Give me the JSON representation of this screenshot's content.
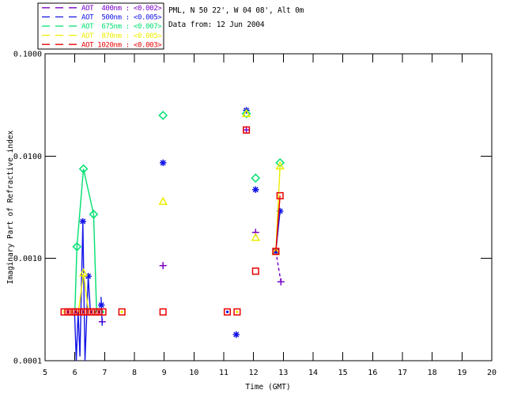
{
  "page": {
    "background": "#ffffff"
  },
  "header": {
    "line1": "PML, N 50 22', W 04 08', Alt 0m",
    "line2": "Data from: 12 Jun 2004"
  },
  "chart_data": {
    "type": "scatter",
    "title": "",
    "xlabel": "Time (GMT)",
    "ylabel": "Imaginary Part of Refractive index",
    "xlim": [
      5,
      20
    ],
    "ylim": [
      0.0001,
      0.1
    ],
    "y_scale": "log",
    "grid": false,
    "x_ticks": [
      5,
      6,
      7,
      8,
      9,
      10,
      11,
      12,
      13,
      14,
      15,
      16,
      17,
      18,
      19,
      20
    ],
    "y_ticks": [
      {
        "value": 0.1,
        "label": "0.1000"
      },
      {
        "value": 0.01,
        "label": "0.0100"
      },
      {
        "value": 0.001,
        "label": "0.0010"
      },
      {
        "value": 0.0001,
        "label": "0.0001"
      }
    ],
    "legend": {
      "position": "top-left",
      "items": [
        {
          "id": "400nm",
          "label": "AOT  400nm : <0.002>",
          "color": "#7800C8"
        },
        {
          "id": "500nm",
          "label": "AOT  500nm : <0.005>",
          "color": "#1414E8"
        },
        {
          "id": "675nm",
          "label": "AOT  675nm : <0.007>",
          "color": "#00E070"
        },
        {
          "id": "870nm",
          "label": "AOT  870nm : <0.005>",
          "color": "#EDED00"
        },
        {
          "id": "1020nm",
          "label": "AOT 1020nm : <0.003>",
          "color": "#E80000"
        }
      ]
    },
    "series": [
      {
        "name": "AOT 400nm",
        "color": "#7800C8",
        "marker": "plus",
        "dash": "4,3",
        "points": [
          [
            6.92,
            0.00024
          ],
          [
            8.96,
            0.00085
          ],
          [
            11.76,
            0.018
          ],
          [
            12.07,
            0.0018
          ],
          [
            12.75,
            0.00117
          ],
          [
            12.92,
            0.00059
          ]
        ],
        "lines": [
          [
            [
              12.75,
              0.00117
            ],
            [
              12.92,
              0.00059
            ]
          ]
        ]
      },
      {
        "name": "AOT 500nm",
        "color": "#1414E8",
        "marker": "asterisk",
        "dash": "",
        "points": [
          [
            6.27,
            0.0023
          ],
          [
            6.45,
            0.00067
          ],
          [
            6.89,
            0.00035
          ],
          [
            8.96,
            0.0086
          ],
          [
            11.42,
            0.00018
          ],
          [
            11.76,
            0.028
          ],
          [
            12.07,
            0.0047
          ],
          [
            12.75,
            0.00117
          ],
          [
            12.89,
            0.0029
          ]
        ],
        "lines": [
          [
            [
              5.99,
              0.0003
            ],
            [
              6.05,
              0.0001
            ],
            [
              6.11,
              0.0003
            ],
            [
              6.17,
              0.00011
            ],
            [
              6.27,
              0.0023
            ],
            [
              6.34,
              0.0001
            ],
            [
              6.45,
              0.00067
            ],
            [
              6.52,
              0.0003
            ]
          ],
          [
            [
              6.88,
              0.00042
            ],
            [
              6.92,
              0.00022
            ]
          ],
          [
            [
              12.75,
              0.00117
            ],
            [
              12.89,
              0.0029
            ]
          ]
        ]
      },
      {
        "name": "AOT 675nm",
        "color": "#00E070",
        "marker": "diamond",
        "dash": "",
        "points": [
          [
            6.07,
            0.0013
          ],
          [
            6.29,
            0.0075
          ],
          [
            6.63,
            0.0027
          ],
          [
            8.96,
            0.025
          ],
          [
            11.76,
            0.026
          ],
          [
            12.07,
            0.0061
          ],
          [
            12.89,
            0.0086
          ]
        ],
        "lines": [
          [
            [
              6.0,
              0.0003
            ],
            [
              6.07,
              0.0013
            ],
            [
              6.29,
              0.0075
            ],
            [
              6.63,
              0.0027
            ],
            [
              6.73,
              0.0003
            ]
          ]
        ]
      },
      {
        "name": "AOT 870nm",
        "color": "#EDED00",
        "marker": "triangle",
        "dash": "",
        "points": [
          [
            6.29,
            0.00072
          ],
          [
            8.96,
            0.0036
          ],
          [
            11.76,
            0.026
          ],
          [
            12.07,
            0.0016
          ],
          [
            12.75,
            0.00117
          ],
          [
            12.89,
            0.008
          ]
        ],
        "lines": [
          [
            [
              6.12,
              0.0003
            ],
            [
              6.29,
              0.00072
            ],
            [
              6.46,
              0.0003
            ]
          ],
          [
            [
              12.75,
              0.00117
            ],
            [
              12.89,
              0.008
            ]
          ]
        ]
      },
      {
        "name": "AOT 1020nm",
        "color": "#E80000",
        "marker": "square",
        "dash": "",
        "points": [
          [
            5.64,
            0.0003
          ],
          [
            5.77,
            0.0003
          ],
          [
            5.9,
            0.0003
          ],
          [
            6.03,
            0.0003
          ],
          [
            6.16,
            0.0003
          ],
          [
            6.29,
            0.0003
          ],
          [
            6.42,
            0.0003
          ],
          [
            6.55,
            0.0003
          ],
          [
            6.68,
            0.0003
          ],
          [
            6.81,
            0.0003
          ],
          [
            6.94,
            0.0003
          ],
          [
            7.58,
            0.0003
          ],
          [
            8.96,
            0.0003
          ],
          [
            11.12,
            0.0003
          ],
          [
            11.45,
            0.0003
          ],
          [
            11.76,
            0.018
          ],
          [
            12.07,
            0.00075
          ],
          [
            12.75,
            0.00117
          ],
          [
            12.89,
            0.0041
          ]
        ],
        "lines": [
          [
            [
              12.75,
              0.00117
            ],
            [
              12.89,
              0.0041
            ]
          ]
        ]
      }
    ],
    "baseline_value": 0.0003,
    "baseline_dots": [
      {
        "t": 5.64,
        "color": "#EDED00"
      },
      {
        "t": 5.77,
        "color": "#1414E8"
      },
      {
        "t": 5.9,
        "color": "#EDED00"
      },
      {
        "t": 6.03,
        "color": "#1414E8"
      },
      {
        "t": 6.16,
        "color": "#EDED00"
      },
      {
        "t": 6.29,
        "color": "#1414E8"
      },
      {
        "t": 6.42,
        "color": "#EDED00"
      },
      {
        "t": 6.55,
        "color": "#1414E8"
      },
      {
        "t": 6.68,
        "color": "#00E070"
      },
      {
        "t": 6.81,
        "color": "#1414E8"
      },
      {
        "t": 6.94,
        "color": "#00E070"
      },
      {
        "t": 7.58,
        "color": "#EDED00"
      },
      {
        "t": 11.12,
        "color": "#1414E8"
      },
      {
        "t": 11.45,
        "color": "#EDED00"
      }
    ]
  }
}
